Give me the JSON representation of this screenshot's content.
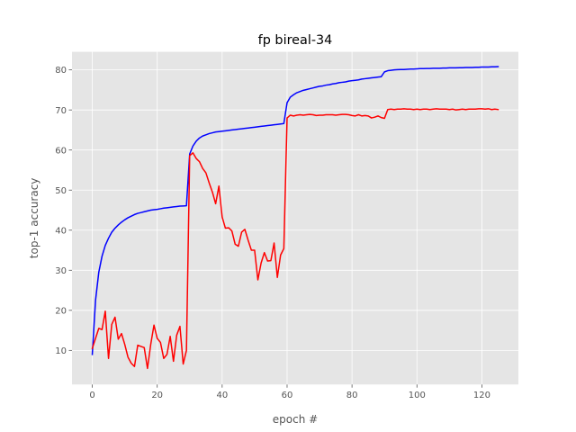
{
  "chart_data": {
    "type": "line",
    "title": "fp bireal-34",
    "xlabel": "epoch #",
    "ylabel": "top-1 accuracy",
    "xlim": [
      -6.25,
      131.25
    ],
    "ylim": [
      1.5,
      84.5
    ],
    "xticks": [
      0,
      20,
      40,
      60,
      80,
      100,
      120
    ],
    "yticks": [
      10,
      20,
      30,
      40,
      50,
      60,
      70,
      80
    ],
    "xtick_labels": [
      "0",
      "20",
      "40",
      "60",
      "80",
      "100",
      "120"
    ],
    "ytick_labels": [
      "10",
      "20",
      "30",
      "40",
      "50",
      "60",
      "70",
      "80"
    ],
    "grid": true,
    "style": "ggplot",
    "series": [
      {
        "color": "#0000ff",
        "x": [
          0,
          1,
          2,
          3,
          4,
          5,
          6,
          7,
          8,
          9,
          10,
          11,
          12,
          13,
          14,
          15,
          16,
          17,
          18,
          19,
          20,
          21,
          22,
          23,
          24,
          25,
          26,
          27,
          28,
          29,
          30,
          31,
          32,
          33,
          34,
          35,
          36,
          37,
          38,
          39,
          40,
          41,
          42,
          43,
          44,
          45,
          46,
          47,
          48,
          49,
          50,
          51,
          52,
          53,
          54,
          55,
          56,
          57,
          58,
          59,
          60,
          61,
          62,
          63,
          64,
          65,
          66,
          67,
          68,
          69,
          70,
          71,
          72,
          73,
          74,
          75,
          76,
          77,
          78,
          79,
          80,
          81,
          82,
          83,
          84,
          85,
          86,
          87,
          88,
          89,
          90,
          91,
          92,
          93,
          94,
          95,
          96,
          97,
          98,
          99,
          100,
          101,
          102,
          103,
          104,
          105,
          106,
          107,
          108,
          109,
          110,
          111,
          112,
          113,
          114,
          115,
          116,
          117,
          118,
          119,
          120,
          121,
          122,
          123,
          124,
          125
        ],
        "y": [
          9.0,
          22.5,
          29.5,
          33.5,
          36.2,
          38.0,
          39.5,
          40.5,
          41.3,
          42.0,
          42.6,
          43.1,
          43.5,
          43.9,
          44.2,
          44.4,
          44.6,
          44.8,
          45.0,
          45.1,
          45.2,
          45.35,
          45.5,
          45.6,
          45.7,
          45.8,
          45.9,
          46.0,
          46.05,
          46.1,
          59.0,
          61.0,
          62.2,
          63.0,
          63.5,
          63.8,
          64.1,
          64.3,
          64.5,
          64.6,
          64.7,
          64.8,
          64.9,
          65.0,
          65.1,
          65.2,
          65.3,
          65.4,
          65.5,
          65.6,
          65.7,
          65.8,
          65.9,
          66.0,
          66.1,
          66.2,
          66.3,
          66.4,
          66.5,
          66.6,
          71.8,
          73.2,
          73.8,
          74.3,
          74.6,
          74.9,
          75.1,
          75.3,
          75.5,
          75.7,
          75.9,
          76.0,
          76.2,
          76.3,
          76.5,
          76.6,
          76.8,
          76.9,
          77.0,
          77.2,
          77.3,
          77.4,
          77.5,
          77.7,
          77.8,
          77.9,
          78.0,
          78.1,
          78.2,
          78.3,
          79.5,
          79.8,
          79.9,
          80.0,
          80.05,
          80.1,
          80.1,
          80.15,
          80.2,
          80.2,
          80.25,
          80.3,
          80.3,
          80.35,
          80.35,
          80.4,
          80.4,
          80.4,
          80.45,
          80.45,
          80.5,
          80.5,
          80.5,
          80.55,
          80.55,
          80.6,
          80.6,
          80.6,
          80.65,
          80.65,
          80.7,
          80.7,
          80.7,
          80.75,
          80.75,
          80.8
        ]
      },
      {
        "color": "#ff0000",
        "x": [
          0,
          1,
          2,
          3,
          4,
          5,
          6,
          7,
          8,
          9,
          10,
          11,
          12,
          13,
          14,
          15,
          16,
          17,
          18,
          19,
          20,
          21,
          22,
          23,
          24,
          25,
          26,
          27,
          28,
          29,
          30,
          31,
          32,
          33,
          34,
          35,
          36,
          37,
          38,
          39,
          40,
          41,
          42,
          43,
          44,
          45,
          46,
          47,
          48,
          49,
          50,
          51,
          52,
          53,
          54,
          55,
          56,
          57,
          58,
          59,
          60,
          61,
          62,
          63,
          64,
          65,
          66,
          67,
          68,
          69,
          70,
          71,
          72,
          73,
          74,
          75,
          76,
          77,
          78,
          79,
          80,
          81,
          82,
          83,
          84,
          85,
          86,
          87,
          88,
          89,
          90,
          91,
          92,
          93,
          94,
          95,
          96,
          97,
          98,
          99,
          100,
          101,
          102,
          103,
          104,
          105,
          106,
          107,
          108,
          109,
          110,
          111,
          112,
          113,
          114,
          115,
          116,
          117,
          118,
          119,
          120,
          121,
          122,
          123,
          124,
          125
        ],
        "y": [
          10.5,
          13.0,
          15.5,
          15.2,
          19.8,
          8.0,
          16.5,
          18.3,
          12.8,
          14.2,
          11.5,
          8.3,
          6.8,
          6.0,
          11.3,
          11.0,
          10.7,
          5.5,
          11.5,
          16.3,
          13.0,
          12.0,
          8.0,
          9.0,
          13.5,
          7.3,
          13.8,
          16.0,
          6.6,
          10.0,
          58.6,
          59.3,
          57.9,
          57.1,
          55.4,
          54.3,
          51.8,
          49.5,
          46.6,
          51.0,
          43.3,
          40.5,
          40.6,
          39.8,
          36.5,
          36.0,
          39.5,
          40.2,
          37.5,
          35.0,
          35.0,
          27.6,
          31.8,
          34.4,
          32.3,
          32.4,
          36.8,
          28.2,
          33.8,
          35.4,
          68.0,
          68.7,
          68.5,
          68.7,
          68.8,
          68.7,
          68.8,
          68.9,
          68.8,
          68.6,
          68.7,
          68.7,
          68.8,
          68.8,
          68.8,
          68.7,
          68.8,
          68.9,
          68.9,
          68.8,
          68.6,
          68.5,
          68.8,
          68.5,
          68.6,
          68.5,
          68.0,
          68.2,
          68.5,
          68.1,
          67.9,
          70.1,
          70.2,
          70.1,
          70.2,
          70.2,
          70.3,
          70.2,
          70.2,
          70.1,
          70.2,
          70.1,
          70.2,
          70.2,
          70.1,
          70.2,
          70.3,
          70.2,
          70.2,
          70.2,
          70.1,
          70.2,
          70.0,
          70.1,
          70.2,
          70.1,
          70.2,
          70.2,
          70.2,
          70.3,
          70.3,
          70.2,
          70.3,
          70.1,
          70.2,
          70.1
        ]
      }
    ]
  }
}
